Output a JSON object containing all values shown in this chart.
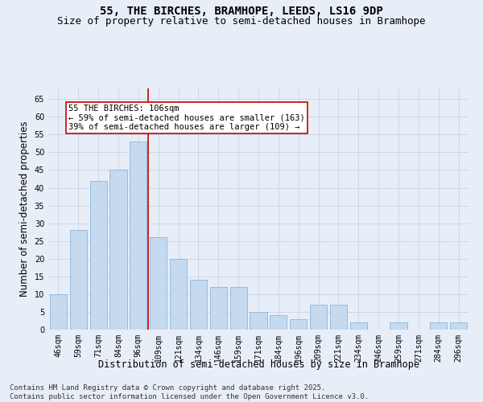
{
  "title1": "55, THE BIRCHES, BRAMHOPE, LEEDS, LS16 9DP",
  "title2": "Size of property relative to semi-detached houses in Bramhope",
  "xlabel": "Distribution of semi-detached houses by size in Bramhope",
  "ylabel": "Number of semi-detached properties",
  "categories": [
    "46sqm",
    "59sqm",
    "71sqm",
    "84sqm",
    "96sqm",
    "109sqm",
    "121sqm",
    "134sqm",
    "146sqm",
    "159sqm",
    "171sqm",
    "184sqm",
    "196sqm",
    "209sqm",
    "221sqm",
    "234sqm",
    "246sqm",
    "259sqm",
    "271sqm",
    "284sqm",
    "296sqm"
  ],
  "values": [
    10,
    28,
    42,
    45,
    53,
    26,
    20,
    14,
    12,
    12,
    5,
    4,
    3,
    7,
    7,
    2,
    0,
    2,
    0,
    2,
    2
  ],
  "bar_color": "#c5d9ef",
  "bar_edge_color": "#7bafd4",
  "vline_index": 4.5,
  "vline_color": "#cc0000",
  "annotation_title": "55 THE BIRCHES: 106sqm",
  "annotation_line1": "← 59% of semi-detached houses are smaller (163)",
  "annotation_line2": "39% of semi-detached houses are larger (109) →",
  "annotation_box_edge_color": "#cc0000",
  "ylim": [
    0,
    68
  ],
  "yticks": [
    0,
    5,
    10,
    15,
    20,
    25,
    30,
    35,
    40,
    45,
    50,
    55,
    60,
    65
  ],
  "footnote": "Contains HM Land Registry data © Crown copyright and database right 2025.\nContains public sector information licensed under the Open Government Licence v3.0.",
  "bg_color": "#e8eef8",
  "grid_color": "#c8d4e8",
  "title_fontsize": 10,
  "subtitle_fontsize": 9,
  "axis_label_fontsize": 8.5,
  "tick_fontsize": 7,
  "annotation_fontsize": 7.5,
  "footnote_fontsize": 6.5
}
